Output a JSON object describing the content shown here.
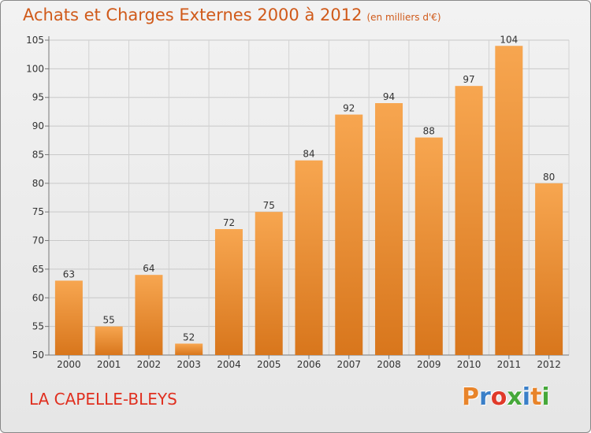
{
  "header": {
    "title": "Achats et Charges Externes 2000 à 2012",
    "subtitle": "(en milliers d'€)"
  },
  "footer": {
    "commune": "LA CAPELLE-BLEYS",
    "logo_text": "Proxiti"
  },
  "colors": {
    "bar_top": "#f7a650",
    "bar_bottom": "#d8761c",
    "title": "#d05a1a",
    "commune": "#e03020",
    "logo_letters": [
      "#e8842a",
      "#3a7fc8",
      "#e03a2a",
      "#46a83a",
      "#3a7fc8",
      "#e8842a",
      "#46a83a"
    ]
  },
  "chart_data": {
    "type": "bar",
    "title": "Achats et Charges Externes 2000 à 2012",
    "subtitle": "(en milliers d'€)",
    "categories": [
      "2000",
      "2001",
      "2002",
      "2003",
      "2004",
      "2005",
      "2006",
      "2007",
      "2008",
      "2009",
      "2010",
      "2011",
      "2012"
    ],
    "values": [
      63,
      55,
      64,
      52,
      72,
      75,
      84,
      92,
      94,
      88,
      97,
      104,
      80
    ],
    "ylim": [
      50,
      105
    ],
    "yticks": [
      50,
      55,
      60,
      65,
      70,
      75,
      80,
      85,
      90,
      95,
      100,
      105
    ],
    "grid": true,
    "data_labels": true
  }
}
